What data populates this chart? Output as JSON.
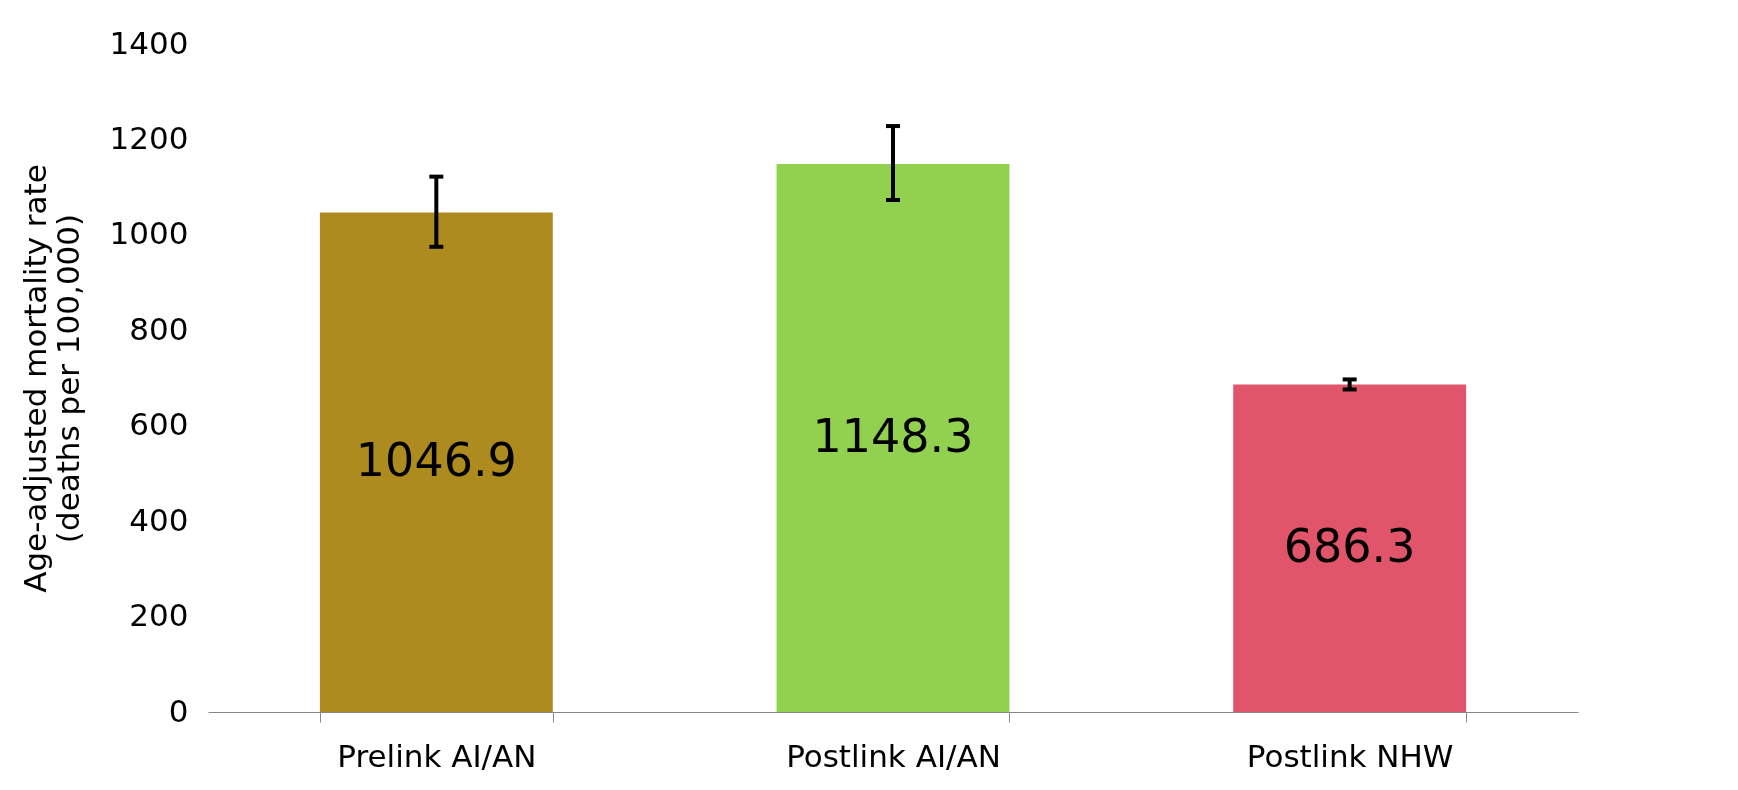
{
  "chart_data": {
    "type": "bar",
    "ylabel": "Age-adjusted mortality rate\n(deaths per 100,000)",
    "categories": [
      "Prelink AI/AN",
      "Postlink AI/AN",
      "Postlink NHW"
    ],
    "values": [
      1046.9,
      1148.3,
      686.3
    ],
    "colors": [
      "#ae8b1f",
      "#92d050",
      "#e0556a"
    ],
    "errors": [
      [
        975,
        1122
      ],
      [
        1073,
        1228
      ],
      [
        676,
        697
      ]
    ],
    "data_labels": true,
    "ylim": [
      0,
      1400
    ],
    "yticks": [
      0,
      200,
      400,
      600,
      800,
      1000,
      1200,
      1400
    ],
    "grid": false
  }
}
